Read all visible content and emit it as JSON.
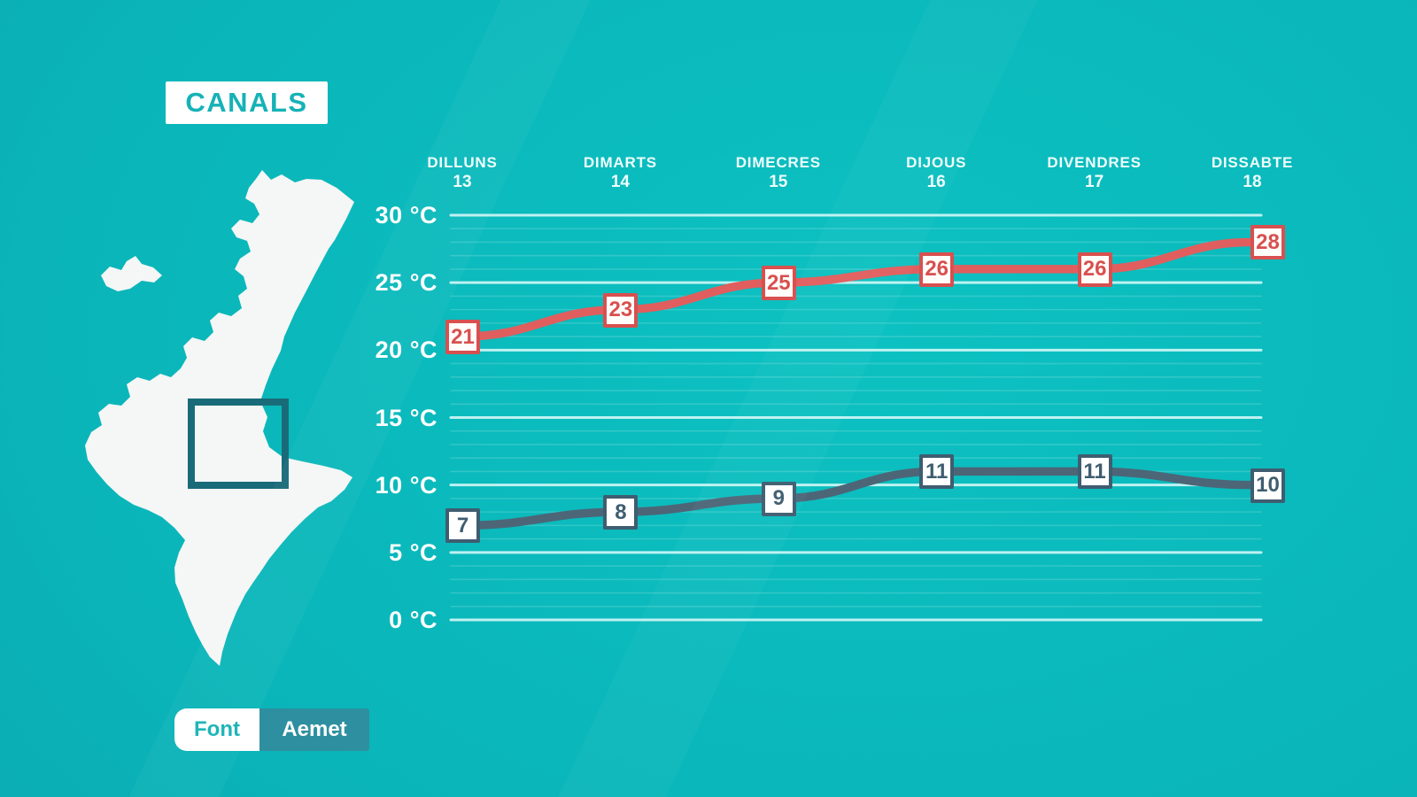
{
  "title": "CANALS",
  "source": {
    "label": "Font",
    "value": "Aemet"
  },
  "colors": {
    "background": "#0ab5b9",
    "max_line": "#e05e5e",
    "max_label": "#d8504f",
    "min_line": "#4c6678",
    "min_label": "#3f5d70",
    "grid_major": "rgba(235,255,255,0.8)",
    "grid_minor": "rgba(255,255,255,0.16)",
    "title_teal": "#16b2b6",
    "source_value_bg": "#2e8fa0",
    "map_fill": "#f5f6f6",
    "map_square_stroke": "#1a6b79"
  },
  "chart_data": {
    "type": "line",
    "title": "",
    "categories": [
      {
        "day": "DILLUNS",
        "date": "13"
      },
      {
        "day": "DIMARTS",
        "date": "14"
      },
      {
        "day": "DIMECRES",
        "date": "15"
      },
      {
        "day": "DIJOUS",
        "date": "16"
      },
      {
        "day": "DIVENDRES",
        "date": "17"
      },
      {
        "day": "DISSABTE",
        "date": "18"
      }
    ],
    "series": [
      {
        "name": "max",
        "color": "#e05e5e",
        "values": [
          21,
          23,
          25,
          26,
          26,
          28
        ]
      },
      {
        "name": "min",
        "color": "#4c6678",
        "values": [
          7,
          8,
          9,
          11,
          11,
          10
        ]
      }
    ],
    "ylim": [
      0,
      30
    ],
    "yticks": [
      {
        "value": 30,
        "label": "30 °C"
      },
      {
        "value": 25,
        "label": "25 °C"
      },
      {
        "value": 20,
        "label": "20 °C"
      },
      {
        "value": 15,
        "label": "15 °C"
      },
      {
        "value": 10,
        "label": "10 °C"
      },
      {
        "value": 5,
        "label": "5 °C"
      },
      {
        "value": 0,
        "label": "0 °C"
      }
    ],
    "major_grid_step": 5,
    "minor_grid_step": 1,
    "grid": "on",
    "legend": "none"
  }
}
